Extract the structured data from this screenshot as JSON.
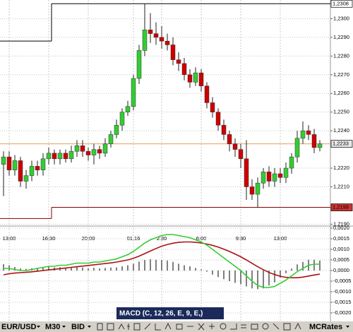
{
  "chart_data": [
    {
      "type": "candlestick",
      "open": [
        1.2222,
        1.2226,
        1.2219,
        1.2224,
        1.2213,
        1.2216,
        1.2221,
        1.2219,
        1.2225,
        1.2228,
        1.2225,
        1.2228,
        1.2225,
        1.2229,
        1.2232,
        1.2229,
        1.2227,
        1.223,
        1.2228,
        1.2233,
        1.2238,
        1.2243,
        1.225,
        1.2253,
        1.2268,
        1.2283,
        1.2294,
        1.2292,
        1.229,
        1.2288,
        1.2286,
        1.2278,
        1.2276,
        1.227,
        1.2266,
        1.2271,
        1.2264,
        1.2255,
        1.225,
        1.2243,
        1.2238,
        1.2233,
        1.223,
        1.2225,
        1.221,
        1.2206,
        1.2212,
        1.2218,
        1.2213,
        1.2217,
        1.2215,
        1.222,
        1.2226,
        1.2236,
        1.224,
        1.2238,
        1.2231
      ],
      "high": [
        1.2229,
        1.2229,
        1.2227,
        1.2226,
        1.2219,
        1.2224,
        1.2224,
        1.2228,
        1.2231,
        1.223,
        1.223,
        1.223,
        1.2232,
        1.2235,
        1.2235,
        1.2231,
        1.2233,
        1.2232,
        1.2236,
        1.224,
        1.2246,
        1.2252,
        1.2256,
        1.227,
        1.2286,
        1.2308,
        1.2303,
        1.2298,
        1.2296,
        1.2292,
        1.229,
        1.2282,
        1.2279,
        1.2273,
        1.2274,
        1.2273,
        1.2266,
        1.2258,
        1.2252,
        1.2246,
        1.224,
        1.2236,
        1.2233,
        1.2235,
        1.2214,
        1.2215,
        1.222,
        1.2221,
        1.222,
        1.222,
        1.2223,
        1.2228,
        1.224,
        1.2245,
        1.2243,
        1.2241,
        1.2235
      ],
      "low": [
        1.2205,
        1.2216,
        1.2216,
        1.221,
        1.2209,
        1.2213,
        1.2216,
        1.2216,
        1.2222,
        1.2222,
        1.2222,
        1.2223,
        1.2223,
        1.2226,
        1.2226,
        1.2224,
        1.2222,
        1.2225,
        1.2226,
        1.2231,
        1.2236,
        1.224,
        1.2248,
        1.2251,
        1.2265,
        1.228,
        1.2287,
        1.2286,
        1.2284,
        1.2283,
        1.2275,
        1.2272,
        1.2267,
        1.2263,
        1.2264,
        1.2261,
        1.2252,
        1.2247,
        1.224,
        1.2235,
        1.2229,
        1.2226,
        1.222,
        1.2203,
        1.2203,
        1.2199,
        1.2209,
        1.221,
        1.221,
        1.2212,
        1.2212,
        1.2217,
        1.2223,
        1.2233,
        1.2235,
        1.2228,
        1.2229
      ],
      "close": [
        1.2226,
        1.2219,
        1.2224,
        1.2213,
        1.2216,
        1.2221,
        1.2219,
        1.2225,
        1.2228,
        1.2225,
        1.2228,
        1.2225,
        1.2229,
        1.2232,
        1.2229,
        1.2227,
        1.223,
        1.2228,
        1.2233,
        1.2238,
        1.2243,
        1.225,
        1.2253,
        1.2268,
        1.2283,
        1.2294,
        1.2292,
        1.229,
        1.2288,
        1.2286,
        1.2278,
        1.2276,
        1.227,
        1.2266,
        1.2271,
        1.2264,
        1.2255,
        1.225,
        1.2243,
        1.2238,
        1.2233,
        1.223,
        1.2225,
        1.221,
        1.2206,
        1.2212,
        1.2218,
        1.2213,
        1.2217,
        1.2215,
        1.222,
        1.2226,
        1.2236,
        1.224,
        1.2238,
        1.2231,
        1.2233
      ],
      "up_color": "#33cc33",
      "down_color": "#cc0000",
      "ylim": [
        1.2189,
        1.231
      ],
      "yticks": [
        {
          "value": 1.219,
          "label": "1,2190"
        },
        {
          "value": 1.221,
          "label": "1,2210"
        },
        {
          "value": 1.222,
          "label": "1,2220"
        },
        {
          "value": 1.224,
          "label": "1,2240"
        },
        {
          "value": 1.225,
          "label": "1,2250"
        },
        {
          "value": 1.226,
          "label": "1,2260"
        },
        {
          "value": 1.227,
          "label": "1,2270"
        },
        {
          "value": 1.228,
          "label": "1,2280"
        },
        {
          "value": 1.229,
          "label": "1,2290"
        },
        {
          "value": 1.23,
          "label": "1,2300"
        }
      ],
      "xticks": [
        {
          "value": 1,
          "label": "13:00"
        },
        {
          "value": 8,
          "label": "16:30"
        },
        {
          "value": 15,
          "label": "20:00"
        },
        {
          "value": 23,
          "label": "01.16"
        },
        {
          "value": 28,
          "label": "2:30"
        },
        {
          "value": 35,
          "label": "6:00"
        },
        {
          "value": 42,
          "label": "9:30"
        },
        {
          "value": 49,
          "label": "13:00"
        }
      ],
      "grid": true,
      "upper_step": {
        "values": [
          1.2288,
          1.2308
        ],
        "color": "#000000"
      },
      "lower_step": {
        "values": [
          1.2193,
          1.2199
        ],
        "color": "#800000"
      },
      "step_index": 9,
      "price_markers": [
        {
          "value": 1.2308,
          "label": "1,2308",
          "color": "#ffffff"
        },
        {
          "value": 1.2233,
          "label": "1,2233",
          "color": "#e8e8e8"
        },
        {
          "value": 1.2199,
          "label": "1,2199",
          "color": "#cc3333"
        }
      ],
      "current_color": "#e0a060"
    },
    {
      "type": "macd",
      "title": "MACD (C, 12, 26, E, 9, E,)",
      "macd": {
        "color": "#33cc33",
        "values": [
          0.0001,
          0.0001,
          5e-05,
          0,
          0,
          5e-05,
          0.0001,
          0.00015,
          0.0002,
          0.0002,
          0.00025,
          0.00025,
          0.0003,
          0.00035,
          0.00035,
          0.00035,
          0.0004,
          0.0004,
          0.00045,
          0.0005,
          0.00055,
          0.00065,
          0.00075,
          0.0009,
          0.0011,
          0.0013,
          0.00145,
          0.00155,
          0.00165,
          0.0017,
          0.0017,
          0.00165,
          0.0016,
          0.00155,
          0.00145,
          0.00135,
          0.0012,
          0.001,
          0.0008,
          0.0006,
          0.0004,
          0.0002,
          0,
          -0.00025,
          -0.0005,
          -0.0007,
          -0.0008,
          -0.0008,
          -0.00075,
          -0.0006,
          -0.00045,
          -0.00025,
          -5e-05,
          0.0001,
          0.00025,
          0.0003,
          0.0003
        ]
      },
      "signal": {
        "color": "#aa1111",
        "values": [
          -0.0002,
          -0.00015,
          -0.00012,
          -0.0001,
          -8e-05,
          -6e-05,
          -3e-05,
          0,
          3e-05,
          6e-05,
          9e-05,
          0.00012,
          0.00015,
          0.00018,
          0.00021,
          0.00024,
          0.00027,
          0.0003,
          0.00033,
          0.00036,
          0.0004,
          0.00045,
          0.0005,
          0.00058,
          0.00068,
          0.0008,
          0.00092,
          0.00104,
          0.00115,
          0.00123,
          0.00129,
          0.00133,
          0.00135,
          0.00135,
          0.00133,
          0.0013,
          0.00125,
          0.00119,
          0.00111,
          0.00101,
          0.0009,
          0.00078,
          0.00065,
          0.0005,
          0.00034,
          0.00018,
          4e-05,
          -9e-05,
          -0.00019,
          -0.00027,
          -0.00032,
          -0.00034,
          -0.00034,
          -0.00031,
          -0.00026,
          -0.00021,
          -0.00017
        ]
      },
      "histogram": {
        "color": "#000000",
        "values": [
          0.0003,
          0.00025,
          0.00017,
          0.0001,
          8e-05,
          0.00011,
          0.00013,
          0.00015,
          0.00017,
          0.00014,
          0.00016,
          0.00013,
          0.00015,
          0.00017,
          0.00014,
          0.00011,
          0.00013,
          0.0001,
          0.00012,
          0.00014,
          0.00015,
          0.0002,
          0.00025,
          0.00032,
          0.00042,
          0.0005,
          0.00053,
          0.00051,
          0.0005,
          0.00047,
          0.00041,
          0.00032,
          0.00025,
          0.0002,
          0.00012,
          5e-05,
          -5e-05,
          -0.00019,
          -0.00031,
          -0.00041,
          -0.0005,
          -0.00058,
          -0.00065,
          -0.00075,
          -0.00084,
          -0.00088,
          -0.00084,
          -0.00071,
          -0.00056,
          -0.00033,
          -0.00013,
          9e-05,
          0.00029,
          0.00041,
          0.00051,
          0.00051,
          0.00047
        ]
      },
      "ylim": [
        -0.0024,
        0.0021
      ],
      "yticks": [
        {
          "value": -0.002,
          "label": "-0,0020"
        },
        {
          "value": -0.0015,
          "label": "-0,0015"
        },
        {
          "value": -0.001,
          "label": "-0,0010"
        },
        {
          "value": -0.0005,
          "label": "-0,0005"
        },
        {
          "value": 0,
          "label": "0,0000"
        },
        {
          "value": 0.0005,
          "label": "0,0005"
        },
        {
          "value": 0.001,
          "label": "0,0010"
        },
        {
          "value": 0.0015,
          "label": "0,0015"
        },
        {
          "value": 0.002,
          "label": "0,0020"
        }
      ]
    }
  ],
  "toolbar": {
    "symbol": "EUR/USD",
    "period": "M30",
    "price": "BID",
    "source": "MCRates"
  }
}
